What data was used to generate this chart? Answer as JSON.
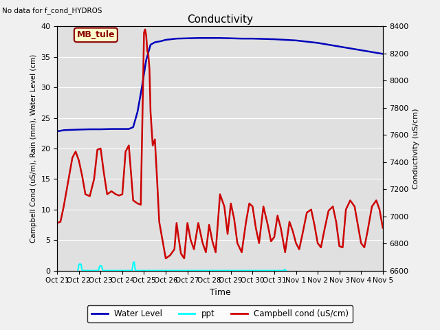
{
  "title": "Conductivity",
  "top_left_text": "No data for f_cond_HYDROS",
  "ylabel_left": "Campbell Cond (uS/m), Rain (mm), Water Level (cm)",
  "ylabel_right": "Conductivity (uS/cm)",
  "xlabel": "Time",
  "ylim_left": [
    0,
    40
  ],
  "ylim_right": [
    6600,
    8400
  ],
  "yleft_ticks": [
    0,
    5,
    10,
    15,
    20,
    25,
    30,
    35,
    40
  ],
  "yright_ticks": [
    6600,
    6800,
    7000,
    7200,
    7400,
    7600,
    7800,
    8000,
    8200,
    8400
  ],
  "annotation_box": "MB_tule",
  "x_ticks": [
    "Oct 21",
    "Oct 22",
    "Oct 23",
    "Oct 24",
    "Oct 25",
    "Oct 26",
    "Oct 27",
    "Oct 28",
    "Oct 29",
    "Oct 30",
    "Oct 31",
    "Nov 1",
    "Nov 2",
    "Nov 3",
    "Nov 4",
    "Nov 5"
  ],
  "water_level": {
    "x": [
      0,
      0.3,
      0.6,
      1.0,
      1.5,
      2.0,
      2.5,
      3.0,
      3.3,
      3.5,
      3.7,
      3.9,
      4.1,
      4.3,
      4.5,
      4.8,
      5.0,
      5.5,
      6.0,
      6.5,
      7.0,
      7.5,
      8.0,
      8.5,
      9.0,
      9.5,
      10.0,
      10.5,
      11.0,
      11.5,
      12.0,
      12.5,
      13.0,
      13.5,
      14.0,
      14.5,
      15.0
    ],
    "y": [
      22.8,
      23.0,
      23.05,
      23.1,
      23.15,
      23.15,
      23.2,
      23.2,
      23.2,
      23.5,
      26.0,
      30.0,
      34.5,
      37.0,
      37.4,
      37.6,
      37.8,
      38.0,
      38.05,
      38.1,
      38.1,
      38.1,
      38.05,
      38.0,
      38.0,
      37.95,
      37.9,
      37.8,
      37.7,
      37.5,
      37.3,
      37.0,
      36.7,
      36.4,
      36.1,
      35.8,
      35.5
    ],
    "color": "#0000bb",
    "linewidth": 1.8,
    "label": "Water Level"
  },
  "ppt": {
    "x": [
      0.95,
      1.0,
      1.05,
      1.1,
      1.15,
      1.9,
      1.95,
      2.0,
      2.05,
      2.1,
      3.45,
      3.5,
      3.55,
      3.6,
      10.4,
      10.45,
      10.5,
      10.55
    ],
    "y": [
      0.0,
      1.0,
      1.1,
      1.0,
      0.0,
      0.0,
      0.7,
      0.8,
      0.7,
      0.0,
      0.0,
      1.3,
      1.4,
      0.0,
      0.0,
      0.1,
      0.15,
      0.0
    ],
    "color": "cyan",
    "linewidth": 1.5,
    "label": "ppt"
  },
  "campbell": {
    "x": [
      0,
      0.15,
      0.3,
      0.5,
      0.7,
      0.85,
      1.0,
      1.15,
      1.3,
      1.5,
      1.7,
      1.85,
      2.0,
      2.15,
      2.3,
      2.5,
      2.7,
      2.85,
      3.0,
      3.15,
      3.3,
      3.5,
      3.7,
      3.85,
      4.0,
      4.05,
      4.1,
      4.15,
      4.2,
      4.25,
      4.3,
      4.4,
      4.5,
      4.6,
      4.7,
      4.8,
      5.0,
      5.2,
      5.4,
      5.5,
      5.6,
      5.7,
      5.85,
      6.0,
      6.15,
      6.3,
      6.5,
      6.7,
      6.85,
      7.0,
      7.15,
      7.3,
      7.5,
      7.7,
      7.85,
      8.0,
      8.15,
      8.3,
      8.5,
      8.7,
      8.85,
      9.0,
      9.15,
      9.3,
      9.5,
      9.7,
      9.85,
      10.0,
      10.15,
      10.3,
      10.5,
      10.7,
      10.85,
      11.0,
      11.15,
      11.3,
      11.5,
      11.7,
      11.85,
      12.0,
      12.15,
      12.3,
      12.5,
      12.7,
      12.85,
      13.0,
      13.15,
      13.3,
      13.5,
      13.7,
      13.85,
      14.0,
      14.15,
      14.3,
      14.5,
      14.7,
      14.85,
      15.0
    ],
    "y": [
      7.8,
      8.0,
      10.5,
      14.5,
      18.5,
      19.5,
      18.0,
      15.5,
      12.5,
      12.2,
      15.0,
      19.8,
      20.0,
      16.0,
      12.5,
      13.0,
      12.5,
      12.3,
      12.5,
      19.5,
      20.5,
      11.5,
      11.0,
      10.8,
      39.0,
      39.5,
      38.5,
      36.0,
      35.3,
      33.0,
      26.0,
      20.5,
      21.5,
      15.0,
      8.0,
      6.0,
      2.0,
      2.5,
      3.5,
      7.8,
      5.2,
      2.8,
      2.0,
      7.8,
      5.0,
      3.5,
      7.8,
      4.5,
      3.0,
      7.5,
      4.8,
      3.0,
      12.5,
      10.5,
      6.0,
      11.0,
      8.5,
      4.5,
      3.0,
      8.0,
      11.0,
      10.5,
      7.0,
      4.5,
      10.5,
      7.5,
      4.8,
      5.5,
      9.0,
      7.0,
      3.0,
      8.0,
      6.5,
      4.5,
      3.5,
      6.0,
      9.5,
      10.0,
      7.5,
      4.5,
      3.8,
      6.5,
      9.8,
      10.5,
      8.0,
      4.0,
      3.8,
      10.0,
      11.5,
      10.5,
      7.5,
      4.5,
      3.8,
      6.5,
      10.5,
      11.5,
      10.0,
      7.0
    ],
    "color": "#cc0000",
    "linewidth": 1.8,
    "label": "Campbell cond (uS/cm)"
  },
  "background_color": "#f0f0f0",
  "plot_bg_color": "#e0e0e0",
  "grid_color": "white",
  "legend_items": [
    {
      "label": "Water Level",
      "color": "#0000bb",
      "linestyle": "-"
    },
    {
      "label": "ppt",
      "color": "cyan",
      "linestyle": "-"
    },
    {
      "label": "Campbell cond (uS/cm)",
      "color": "#cc0000",
      "linestyle": "-"
    }
  ]
}
